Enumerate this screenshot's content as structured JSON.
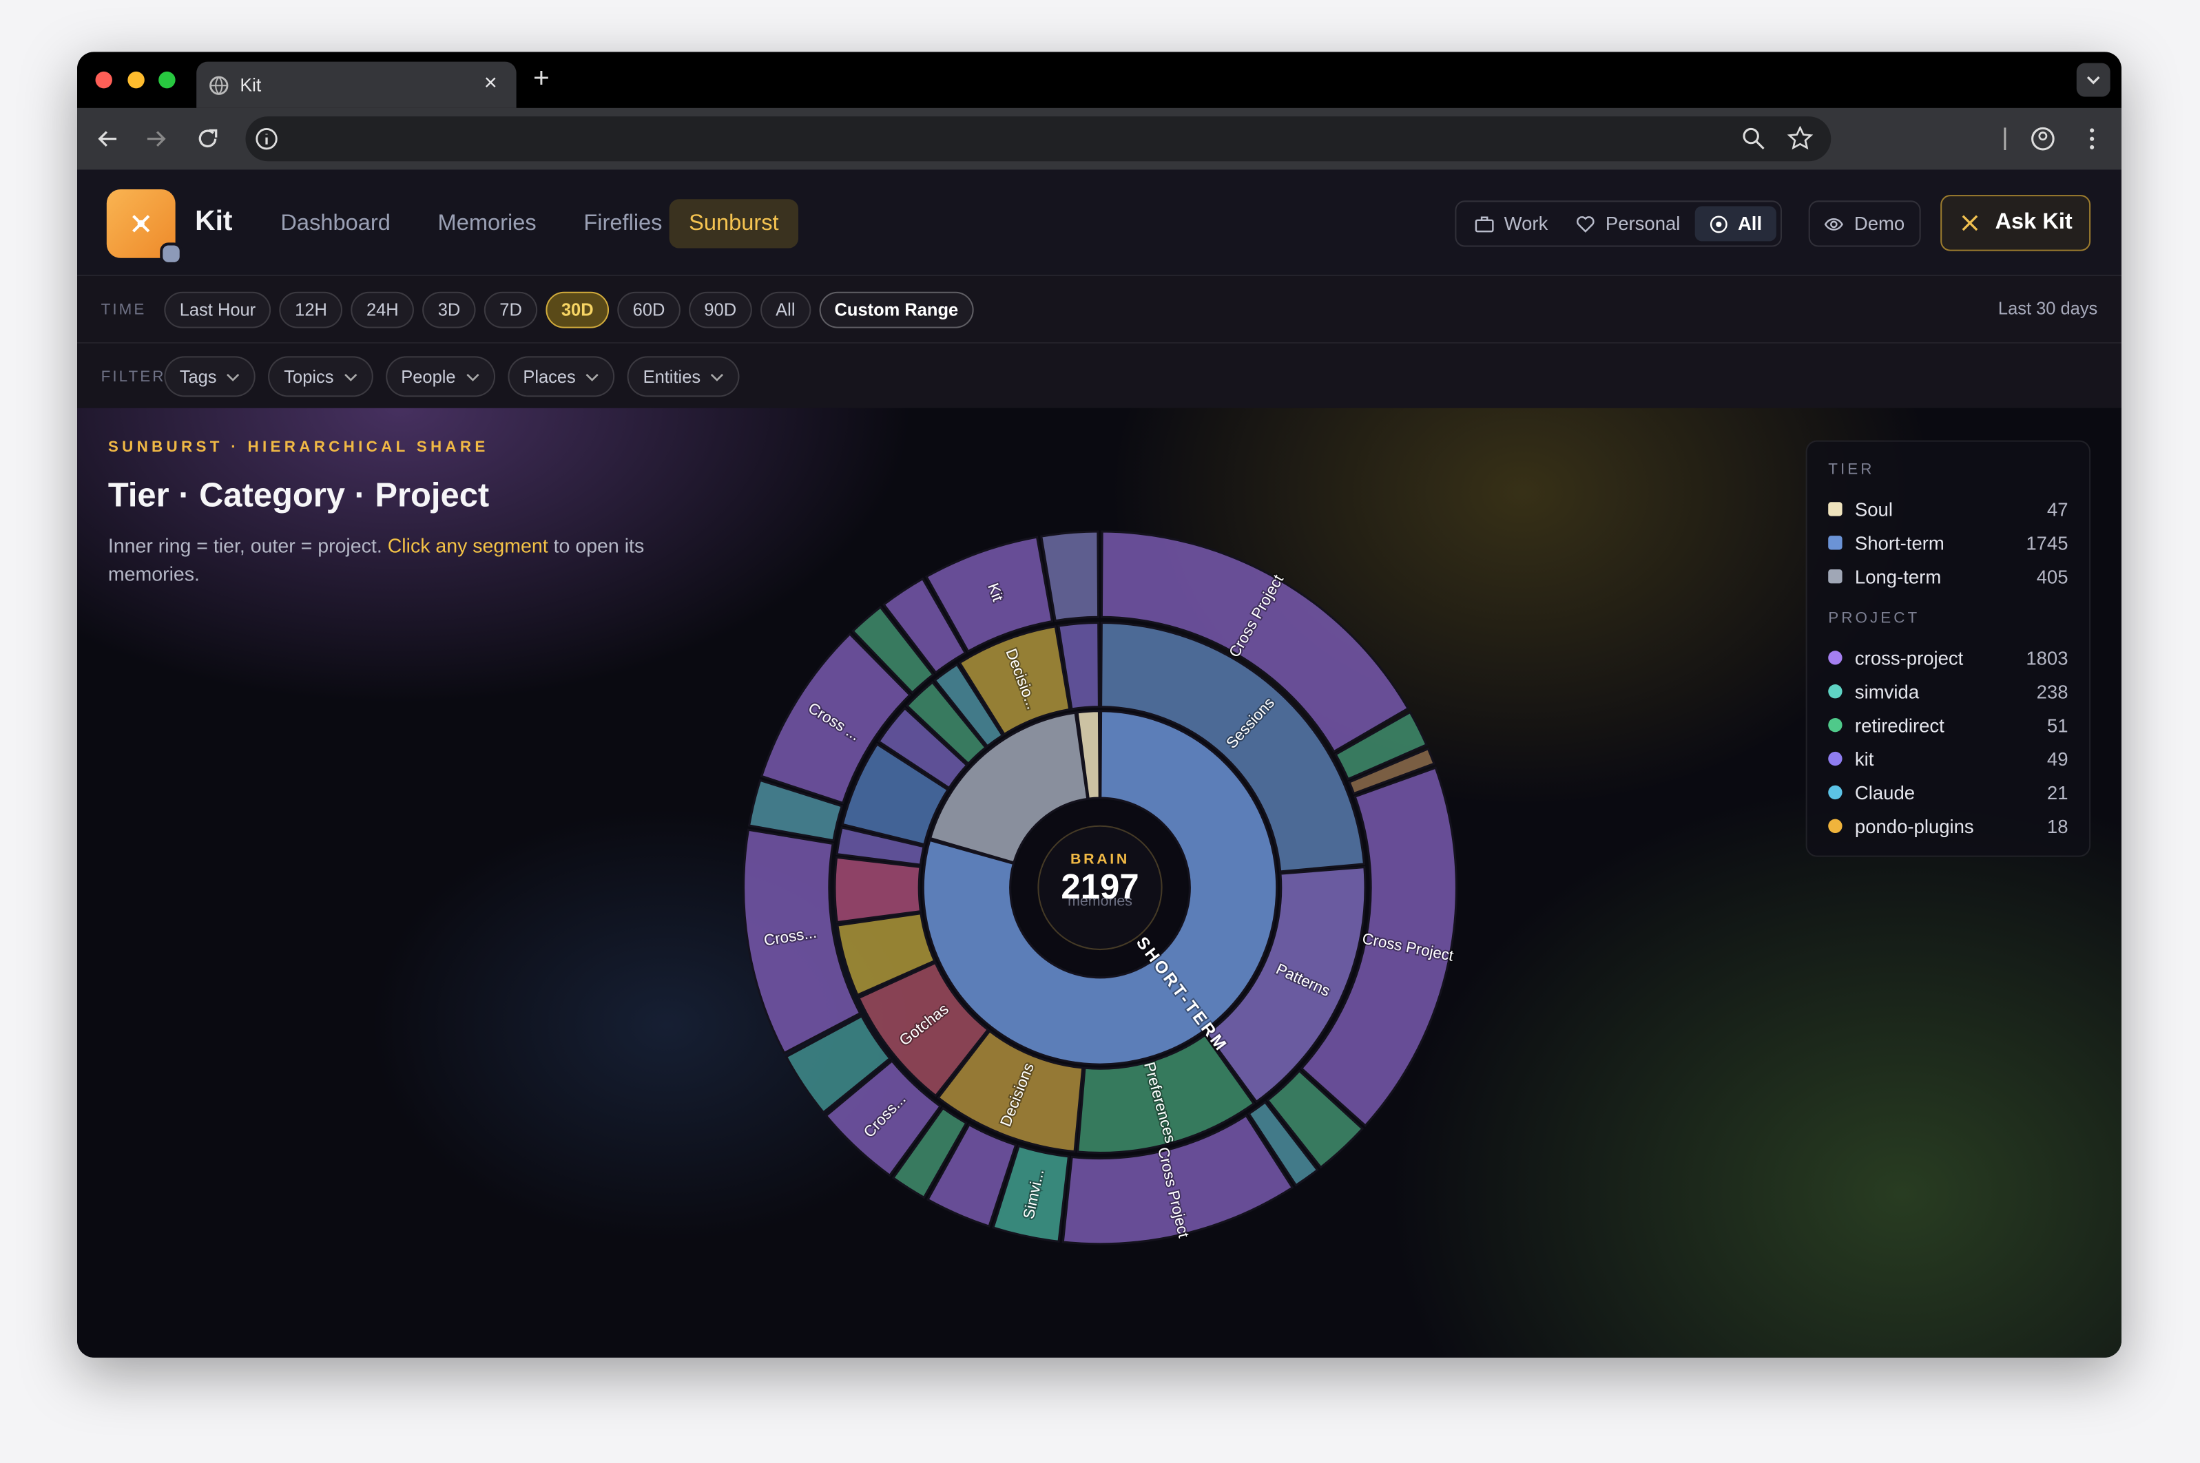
{
  "browser": {
    "tab_title": "Kit"
  },
  "header": {
    "brand": "Kit",
    "nav": [
      "Dashboard",
      "Memories",
      "Fireflies",
      "Sunburst"
    ],
    "nav_active": 3,
    "scopes": [
      "Work",
      "Personal",
      "All"
    ],
    "scope_active": 2,
    "demo": "Demo",
    "ask": "Ask Kit"
  },
  "time": {
    "label": "TIME",
    "options": [
      "Last Hour",
      "12H",
      "24H",
      "3D",
      "7D",
      "30D",
      "60D",
      "90D",
      "All",
      "Custom Range"
    ],
    "active": 5,
    "summary": "Last 30 days"
  },
  "filter": {
    "label": "FILTER",
    "options": [
      "Tags",
      "Topics",
      "People",
      "Places",
      "Entities"
    ]
  },
  "intro": {
    "eyebrow": "SUNBURST · HIERARCHICAL SHARE",
    "title": "Tier · Category · Project",
    "text_before": "Inner ring = tier, outer = project. ",
    "link": "Click any segment",
    "text_after": " to open its memories."
  },
  "chart_data": {
    "type": "sunburst",
    "center_label": "BRAIN",
    "center_value": 2197,
    "center_unit": "memories",
    "ring_label": "SHORT-TERM",
    "legend": {
      "tier": {
        "title": "TIER",
        "items": [
          {
            "label": "Soul",
            "value": 47,
            "color": "#efe3bd"
          },
          {
            "label": "Short-term",
            "value": 1745,
            "color": "#6b93d6"
          },
          {
            "label": "Long-term",
            "value": 405,
            "color": "#a0a7b6"
          }
        ]
      },
      "project": {
        "title": "PROJECT",
        "items": [
          {
            "label": "cross-project",
            "value": 1803,
            "color": "#a57ff0"
          },
          {
            "label": "simvida",
            "value": 238,
            "color": "#5fd3c4"
          },
          {
            "label": "retiredirect",
            "value": 51,
            "color": "#4fc98a"
          },
          {
            "label": "kit",
            "value": 49,
            "color": "#8f7df0"
          },
          {
            "label": "Claude",
            "value": 21,
            "color": "#5cc3e6"
          },
          {
            "label": "pondo-plugins",
            "value": 18,
            "color": "#f0b43c"
          }
        ]
      }
    },
    "rings": [
      {
        "segments": [
          {
            "label": "Sessions",
            "value": 520,
            "color": "#5577a8"
          },
          {
            "label": "Patterns",
            "value": 360,
            "color": "#7867b4"
          },
          {
            "label": "Preferences",
            "value": 250,
            "color": "#3c8a68"
          },
          {
            "label": "Decisions",
            "value": 200,
            "color": "#a8893a"
          },
          {
            "label": "Gotchas",
            "value": 170,
            "color": "#9a4a5c"
          },
          {
            "label": null,
            "value": 100,
            "color": "#a89338"
          },
          {
            "label": null,
            "value": 90,
            "color": "#a04a72"
          },
          {
            "label": null,
            "value": 40,
            "color": "#6a5aa8"
          },
          {
            "label": null,
            "value": 120,
            "color": "#4a6fa8"
          },
          {
            "label": null,
            "value": 60,
            "color": "#6a5aa8"
          },
          {
            "label": null,
            "value": 50,
            "color": "#3f8a6a"
          },
          {
            "label": null,
            "value": 40,
            "color": "#4a8a9a"
          },
          {
            "label": "Decisio...",
            "value": 140,
            "color": "#a8903a"
          },
          {
            "label": null,
            "value": 57,
            "color": "#6a5aa8"
          }
        ]
      },
      {
        "segments": [
          {
            "label": "Cross Project",
            "value": 367,
            "color": "#7456a8"
          },
          {
            "label": null,
            "value": 40,
            "color": "#3f8a6a"
          },
          {
            "label": null,
            "value": 20,
            "color": "#8a6a4a"
          },
          {
            "label": "Cross Project",
            "value": 380,
            "color": "#7456a8"
          },
          {
            "label": null,
            "value": 60,
            "color": "#3f8a6a"
          },
          {
            "label": null,
            "value": 30,
            "color": "#4a8a9a"
          },
          {
            "label": "Cross Project",
            "value": 240,
            "color": "#7456a8"
          },
          {
            "label": "Simvi...",
            "value": 70,
            "color": "#3f9a8a"
          },
          {
            "label": null,
            "value": 70,
            "color": "#7456a8"
          },
          {
            "label": null,
            "value": 40,
            "color": "#3f8a6a"
          },
          {
            "label": "Cross...",
            "value": 90,
            "color": "#7456a8"
          },
          {
            "label": null,
            "value": 70,
            "color": "#3f8a8a"
          },
          {
            "label": "Cross...",
            "value": 230,
            "color": "#7456a8"
          },
          {
            "label": null,
            "value": 50,
            "color": "#4a8a9a"
          },
          {
            "label": "Cross ...",
            "value": 170,
            "color": "#7456a8"
          },
          {
            "label": null,
            "value": 40,
            "color": "#3f8a6a"
          },
          {
            "label": null,
            "value": 50,
            "color": "#7456a8"
          },
          {
            "label": "Kit",
            "value": 120,
            "color": "#7456a8"
          },
          {
            "label": null,
            "value": 60,
            "color": "#6a6aa0"
          }
        ]
      }
    ]
  }
}
